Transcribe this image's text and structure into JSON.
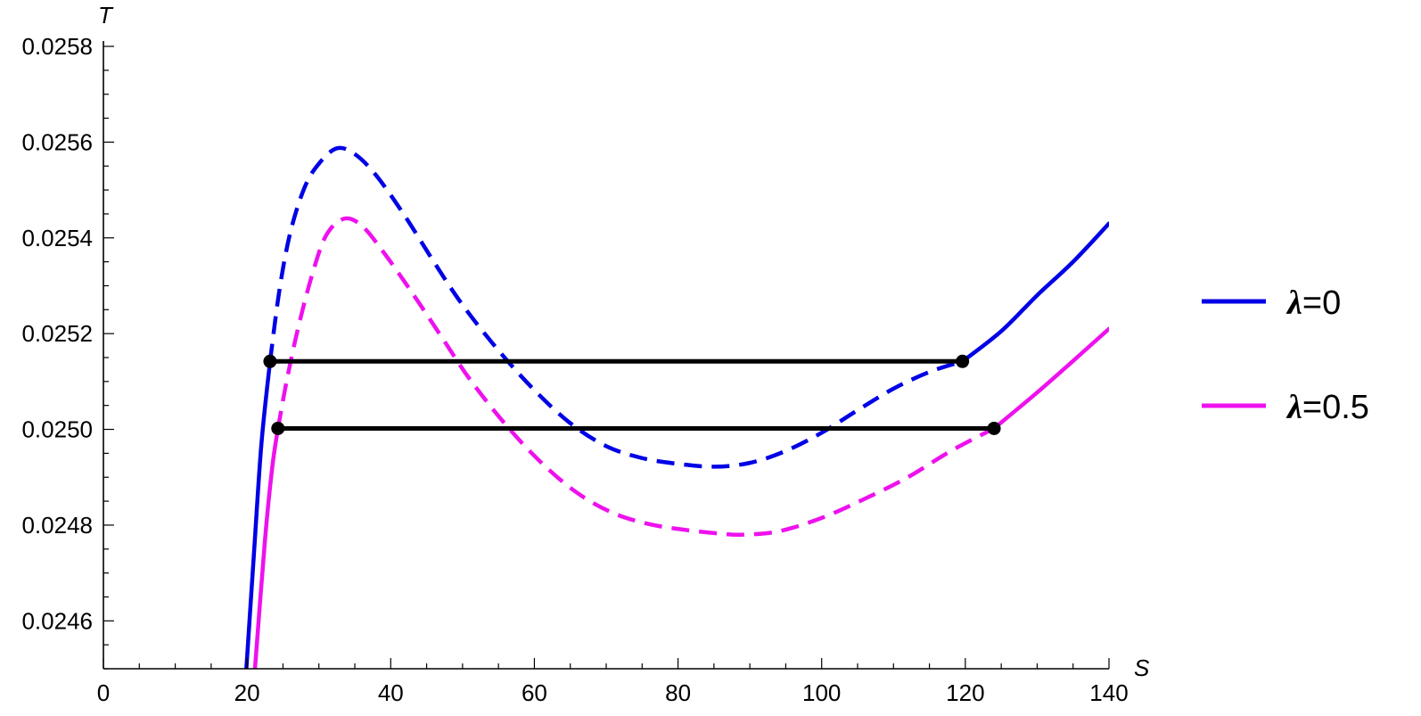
{
  "chart_data": {
    "type": "line",
    "title": "",
    "xlabel": "S",
    "ylabel": "T",
    "xlim": [
      0,
      140
    ],
    "ylim": [
      0.0245,
      0.0258
    ],
    "x_ticks": [
      0,
      20,
      40,
      60,
      80,
      100,
      120,
      140
    ],
    "x_tick_labels": [
      "0",
      "20",
      "40",
      "60",
      "80",
      "100",
      "120",
      "140"
    ],
    "y_ticks": [
      0.0246,
      0.0248,
      0.025,
      0.0252,
      0.0254,
      0.0256,
      0.0258
    ],
    "y_tick_labels": [
      "0.0246",
      "0.0248",
      "0.0250",
      "0.0252",
      "0.0254",
      "0.0256",
      "0.0258"
    ],
    "grid": false,
    "legend_position": "right",
    "series": [
      {
        "name": "λ=0",
        "symbol": "λ",
        "value_text": "=0",
        "color": "#0000e6",
        "x": [
          19.9,
          21.0,
          22.0,
          23.2,
          24.5,
          26,
          28,
          30,
          32.5,
          35,
          38,
          42,
          46,
          50,
          55,
          60,
          65,
          70,
          75,
          80,
          85,
          90,
          95,
          100,
          105,
          110,
          115,
          119.6,
          125,
          130,
          135,
          140
        ],
        "y": [
          0.0245,
          0.02475,
          0.02497,
          0.025142,
          0.02529,
          0.02541,
          0.025505,
          0.025555,
          0.025587,
          0.025575,
          0.02553,
          0.025445,
          0.02535,
          0.02526,
          0.025165,
          0.025082,
          0.025013,
          0.024965,
          0.02494,
          0.024928,
          0.024922,
          0.02493,
          0.024955,
          0.024993,
          0.02504,
          0.025085,
          0.02512,
          0.025142,
          0.025205,
          0.02528,
          0.02535,
          0.02543
        ],
        "stable_below_x": 23.2,
        "stable_above_x": 119.6,
        "unstable_style": "dashed"
      },
      {
        "name": "λ=0.5",
        "symbol": "λ",
        "value_text": "=0.5",
        "color": "#ee11ee",
        "x": [
          21.1,
          22.5,
          23.5,
          24.3,
          25.5,
          27,
          29,
          31,
          33.5,
          36,
          39,
          43,
          47,
          51,
          56,
          61,
          66,
          71,
          76,
          81,
          86,
          89,
          94,
          100,
          106,
          112,
          118,
          124,
          130,
          135,
          140
        ],
        "y": [
          0.0245,
          0.02477,
          0.02492,
          0.025002,
          0.0251,
          0.025205,
          0.02532,
          0.025405,
          0.02544,
          0.025425,
          0.02537,
          0.025285,
          0.025195,
          0.025105,
          0.02501,
          0.02493,
          0.024867,
          0.024825,
          0.024802,
          0.02479,
          0.024782,
          0.02478,
          0.024787,
          0.024815,
          0.024855,
          0.0249,
          0.024955,
          0.025002,
          0.025077,
          0.025143,
          0.02521
        ],
        "stable_below_x": 24.3,
        "stable_above_x": 124,
        "unstable_style": "dashed"
      }
    ],
    "annotations": [
      {
        "type": "segment",
        "x0": 23.2,
        "x1": 119.6,
        "y": 0.025142,
        "color": "#000000",
        "endpoints": "dots"
      },
      {
        "type": "segment",
        "x0": 24.3,
        "x1": 124,
        "y": 0.025002,
        "color": "#000000",
        "endpoints": "dots"
      }
    ]
  }
}
